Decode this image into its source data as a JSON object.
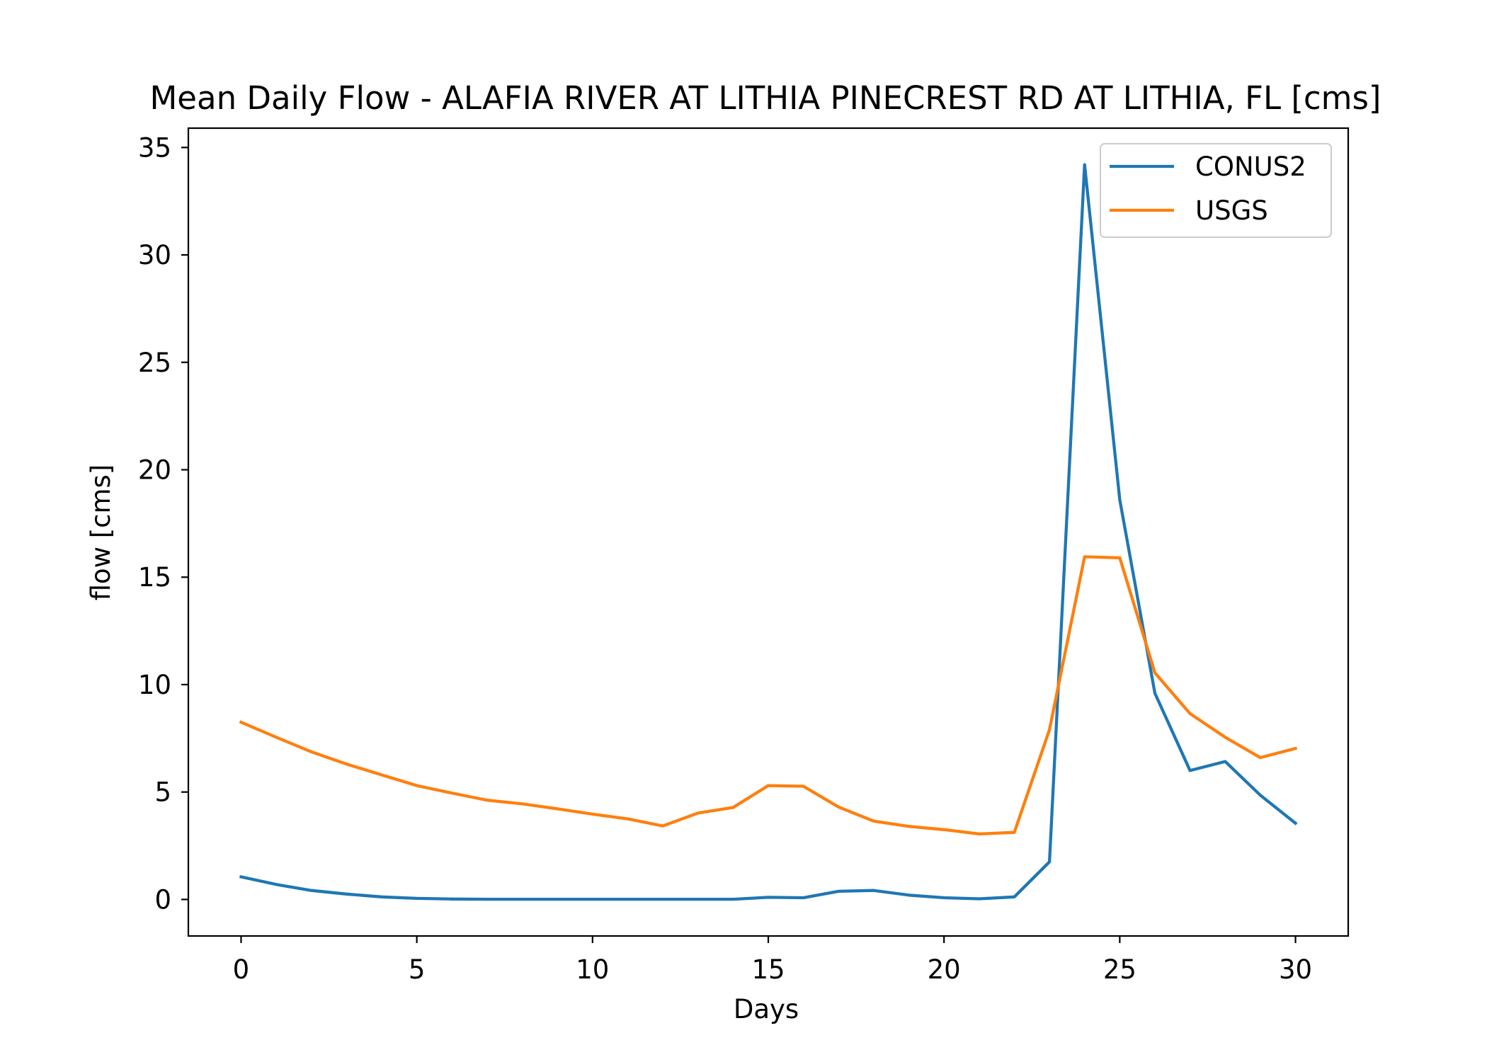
{
  "chart_data": {
    "type": "line",
    "title": "Mean Daily Flow - ALAFIA RIVER AT LITHIA PINECREST RD AT LITHIA, FL [cms]",
    "xlabel": "Days",
    "ylabel": "flow [cms]",
    "xlim": [
      -1.5,
      31.5
    ],
    "ylim": [
      -1.7,
      35.9
    ],
    "xticks": [
      0,
      5,
      10,
      15,
      20,
      25,
      30
    ],
    "yticks": [
      0,
      5,
      10,
      15,
      20,
      25,
      30,
      35
    ],
    "grid": false,
    "legend_position": "upper right",
    "x": [
      0,
      1,
      2,
      3,
      4,
      5,
      6,
      7,
      8,
      9,
      10,
      11,
      12,
      13,
      14,
      15,
      16,
      17,
      18,
      19,
      20,
      21,
      22,
      23,
      24,
      25,
      26,
      27,
      28,
      29,
      30
    ],
    "series": [
      {
        "name": "CONUS2",
        "color": "#1f77b4",
        "values": [
          1.05,
          0.7,
          0.42,
          0.25,
          0.12,
          0.05,
          0.02,
          0.01,
          0.01,
          0.01,
          0.01,
          0.01,
          0.01,
          0.01,
          0.01,
          0.1,
          0.08,
          0.38,
          0.42,
          0.2,
          0.08,
          0.03,
          0.12,
          1.75,
          34.2,
          18.6,
          9.6,
          6.0,
          6.42,
          4.85,
          3.55
        ]
      },
      {
        "name": "USGS",
        "color": "#ff7f0e",
        "values": [
          8.25,
          7.55,
          6.87,
          6.3,
          5.8,
          5.3,
          4.95,
          4.62,
          4.45,
          4.22,
          3.97,
          3.75,
          3.42,
          4.02,
          4.28,
          5.3,
          5.27,
          4.3,
          3.65,
          3.4,
          3.25,
          3.05,
          3.12,
          7.9,
          15.95,
          15.9,
          10.55,
          8.65,
          7.55,
          6.6,
          7.03
        ]
      }
    ]
  }
}
